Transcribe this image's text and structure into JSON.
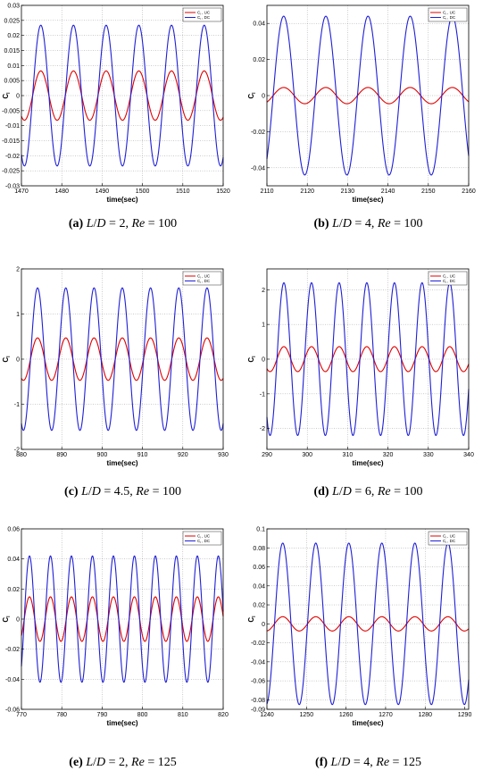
{
  "chart_data": [
    {
      "type": "line",
      "panel": "a",
      "ylabel": "C",
      "ylabel_sub": "l",
      "xlabel": "time(sec)",
      "xlim": [
        1470,
        1520
      ],
      "ylim": [
        -0.03,
        0.03
      ],
      "xticks": [
        1470,
        1480,
        1490,
        1500,
        1510,
        1520
      ],
      "yticks": [
        -0.03,
        -0.025,
        -0.02,
        -0.015,
        -0.01,
        -0.005,
        0,
        0.005,
        0.01,
        0.015,
        0.02,
        0.025,
        0.03
      ],
      "ytick_labels": [
        "-0.03",
        "-0.025",
        "-0.02",
        "-0.015",
        "-0.01",
        "-0.005",
        "0",
        "0.005",
        "0.01",
        "0.015",
        "0.02",
        "0.025",
        "0.03"
      ],
      "legend_position": "top-right",
      "series": [
        {
          "name": "C , UC",
          "name_sub": "l",
          "color": "#e00000",
          "amplitude": 0.0082,
          "period": 8.1,
          "peak_time": 1474.8
        },
        {
          "name": "C , DC",
          "name_sub": "l",
          "color": "#1f1fd6",
          "amplitude": 0.0234,
          "period": 8.1,
          "peak_time": 1474.8
        }
      ],
      "caption": {
        "label": "(a)",
        "ld": "2",
        "re": "100"
      }
    },
    {
      "type": "line",
      "panel": "b",
      "ylabel": "C",
      "ylabel_sub": "l",
      "xlabel": "time(sec)",
      "xlim": [
        2110,
        2160
      ],
      "ylim": [
        -0.05,
        0.05
      ],
      "xticks": [
        2110,
        2120,
        2130,
        2140,
        2150,
        2160
      ],
      "yticks": [
        -0.04,
        -0.02,
        0,
        0.02,
        0.04
      ],
      "ytick_labels": [
        "-0.04",
        "-0.02",
        "0",
        "0.02",
        "0.04"
      ],
      "legend_position": "top-right",
      "series": [
        {
          "name": "C , UC",
          "name_sub": "l",
          "color": "#e00000",
          "amplitude": 0.0045,
          "period": 10.45,
          "peak_time": 2124.6
        },
        {
          "name": "C , DC",
          "name_sub": "l",
          "color": "#1f1fd6",
          "amplitude": 0.044,
          "period": 10.45,
          "peak_time": 2124.6
        }
      ],
      "caption": {
        "label": "(b)",
        "ld": "4",
        "re": "100"
      }
    },
    {
      "type": "line",
      "panel": "c",
      "ylabel": "C",
      "ylabel_sub": "l",
      "xlabel": "time(sec)",
      "xlim": [
        880,
        930
      ],
      "ylim": [
        -2,
        2
      ],
      "xticks": [
        880,
        890,
        900,
        910,
        920,
        930
      ],
      "yticks": [
        -2,
        -1,
        0,
        1,
        2
      ],
      "ytick_labels": [
        "-2",
        "-1",
        "0",
        "1",
        "2"
      ],
      "legend_position": "top-right",
      "series": [
        {
          "name": "C , UC",
          "name_sub": "l",
          "color": "#e00000",
          "amplitude": 0.47,
          "period": 7.0,
          "peak_time": 884.0
        },
        {
          "name": "C , DC",
          "name_sub": "l",
          "color": "#1f1fd6",
          "amplitude": 1.58,
          "period": 7.0,
          "peak_time": 884.0
        }
      ],
      "caption": {
        "label": "(c)",
        "ld": "4.5",
        "re": "100"
      }
    },
    {
      "type": "line",
      "panel": "d",
      "ylabel": "C",
      "ylabel_sub": "l",
      "xlabel": "time(sec)",
      "xlim": [
        290,
        340
      ],
      "ylim": [
        -2.6,
        2.6
      ],
      "xticks": [
        290,
        300,
        310,
        320,
        330,
        340
      ],
      "yticks": [
        -2,
        -1,
        0,
        1,
        2
      ],
      "ytick_labels": [
        "-2",
        "-1",
        "0",
        "1",
        "2"
      ],
      "legend_position": "top-right",
      "series": [
        {
          "name": "C , UC",
          "name_sub": "l",
          "color": "#e00000",
          "amplitude": 0.36,
          "period": 6.85,
          "peak_time": 294.2
        },
        {
          "name": "C , DC",
          "name_sub": "l",
          "color": "#1f1fd6",
          "amplitude": 2.2,
          "period": 6.85,
          "peak_time": 294.2
        }
      ],
      "caption": {
        "label": "(d)",
        "ld": "6",
        "re": "100"
      }
    },
    {
      "type": "line",
      "panel": "e",
      "ylabel": "C",
      "ylabel_sub": "l",
      "xlabel": "time(sec)",
      "xlim": [
        770,
        820
      ],
      "ylim": [
        -0.06,
        0.06
      ],
      "xticks": [
        770,
        780,
        790,
        800,
        810,
        820
      ],
      "yticks": [
        -0.06,
        -0.04,
        -0.02,
        0,
        0.02,
        0.04,
        0.06
      ],
      "ytick_labels": [
        "-0.06",
        "-0.04",
        "-0.02",
        "0",
        "0.02",
        "0.04",
        "0.06"
      ],
      "legend_position": "top-right",
      "series": [
        {
          "name": "C , UC",
          "name_sub": "l",
          "color": "#e00000",
          "amplitude": 0.0148,
          "period": 5.2,
          "peak_time": 772.0
        },
        {
          "name": "C , DC",
          "name_sub": "l",
          "color": "#1f1fd6",
          "amplitude": 0.042,
          "period": 5.2,
          "peak_time": 772.0
        }
      ],
      "caption": {
        "label": "(e)",
        "ld": "2",
        "re": "125"
      }
    },
    {
      "type": "line",
      "panel": "f",
      "ylabel": "C",
      "ylabel_sub": "l",
      "xlabel": "time(sec)",
      "xlim": [
        1240,
        1291
      ],
      "ylim": [
        -0.09,
        0.1
      ],
      "xticks": [
        1240,
        1250,
        1260,
        1270,
        1280,
        1290
      ],
      "yticks": [
        -0.09,
        -0.08,
        -0.06,
        -0.04,
        -0.02,
        0,
        0.02,
        0.04,
        0.06,
        0.08,
        0.1
      ],
      "ytick_labels": [
        "-0.09",
        "-0.08",
        "-0.06",
        "-0.04",
        "-0.02",
        "0",
        "0.02",
        "0.04",
        "0.06",
        "0.08",
        "0.1"
      ],
      "legend_position": "top-right",
      "series": [
        {
          "name": "C , UC",
          "name_sub": "l",
          "color": "#e00000",
          "amplitude": 0.0075,
          "period": 8.35,
          "peak_time": 1244.0
        },
        {
          "name": "C , DC",
          "name_sub": "l",
          "color": "#1f1fd6",
          "amplitude": 0.085,
          "period": 8.35,
          "peak_time": 1244.0
        }
      ],
      "caption": {
        "label": "(f)",
        "ld": "4",
        "re": "125"
      }
    }
  ]
}
